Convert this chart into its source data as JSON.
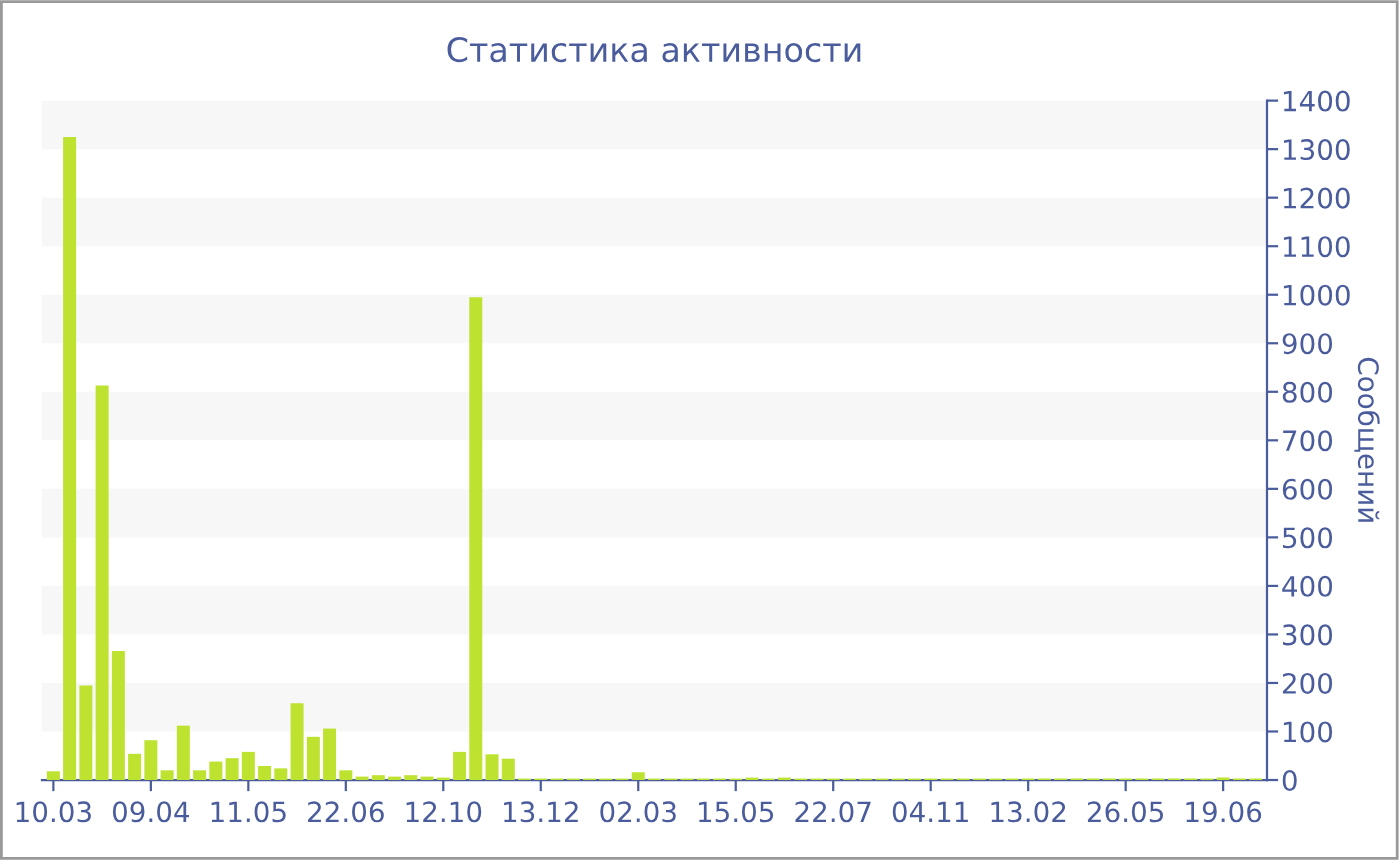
{
  "chart_data": {
    "type": "bar",
    "title": "Статистика активности",
    "ylabel": "Сообщений",
    "categories": [
      "10.03",
      null,
      null,
      null,
      null,
      null,
      "09.04",
      null,
      null,
      null,
      null,
      null,
      "11.05",
      null,
      null,
      null,
      null,
      null,
      "22.06",
      null,
      null,
      null,
      null,
      null,
      "12.10",
      null,
      null,
      null,
      null,
      null,
      "13.12",
      null,
      null,
      null,
      null,
      null,
      "02.03",
      null,
      null,
      null,
      null,
      null,
      "15.05",
      null,
      null,
      null,
      null,
      null,
      "22.07",
      null,
      null,
      null,
      null,
      null,
      "04.11",
      null,
      null,
      null,
      null,
      null,
      "13.02",
      null,
      null,
      null,
      null,
      null,
      "26.05",
      null,
      null,
      null,
      null,
      null,
      "19.06",
      null,
      null
    ],
    "values": [
      18,
      1325,
      195,
      813,
      266,
      54,
      82,
      20,
      112,
      20,
      38,
      45,
      58,
      29,
      24,
      158,
      89,
      106,
      20,
      7,
      10,
      7,
      10,
      7,
      5,
      58,
      995,
      53,
      44,
      3,
      3,
      3,
      3,
      3,
      3,
      3,
      16,
      3,
      3,
      3,
      3,
      3,
      3,
      5,
      3,
      5,
      3,
      3,
      3,
      3,
      3,
      3,
      3,
      3,
      3,
      3,
      3,
      3,
      3,
      3,
      3,
      3,
      3,
      3,
      3,
      3,
      3,
      3,
      3,
      3,
      3,
      3,
      5,
      3,
      3
    ],
    "color": "#bde22f",
    "ylim": [
      0,
      1400
    ],
    "yticks": [
      0,
      100,
      200,
      300,
      400,
      500,
      600,
      700,
      800,
      900,
      1000,
      1100,
      1200,
      1300,
      1400
    ],
    "bands": [
      {
        "axis": "y",
        "from": 100,
        "to": 200,
        "color": "#f7f7f7"
      },
      {
        "axis": "y",
        "from": 300,
        "to": 400,
        "color": "#f7f7f7"
      },
      {
        "axis": "y",
        "from": 500,
        "to": 600,
        "color": "#f7f7f7"
      },
      {
        "axis": "y",
        "from": 700,
        "to": 800,
        "color": "#f7f7f7"
      },
      {
        "axis": "y",
        "from": 900,
        "to": 1000,
        "color": "#f7f7f7"
      },
      {
        "axis": "y",
        "from": 1100,
        "to": 1200,
        "color": "#f7f7f7"
      },
      {
        "axis": "y",
        "from": 1300,
        "to": 1400,
        "color": "#f7f7f7"
      }
    ]
  }
}
